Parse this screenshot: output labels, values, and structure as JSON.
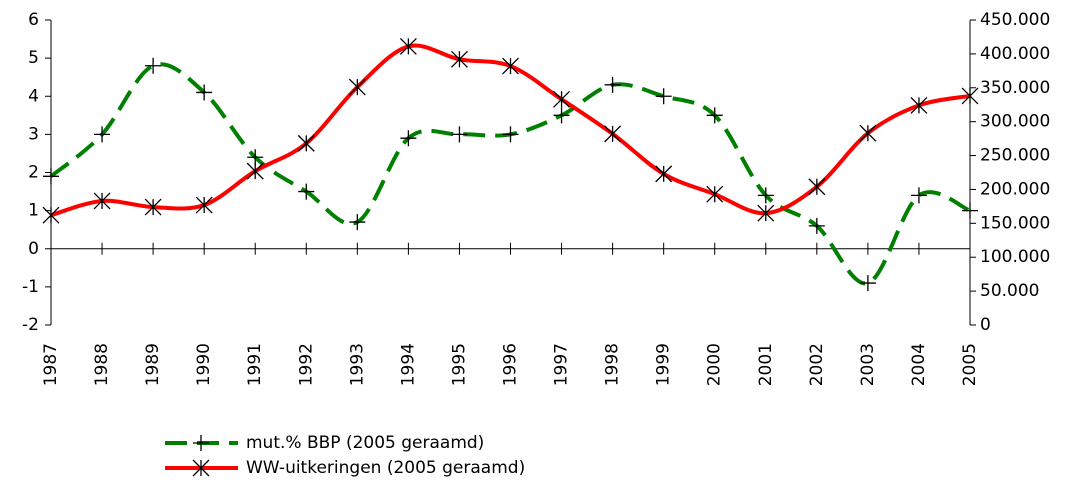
{
  "chart_data": {
    "type": "line",
    "categories": [
      "1987",
      "1988",
      "1989",
      "1990",
      "1991",
      "1992",
      "1993",
      "1994",
      "1995",
      "1996",
      "1997",
      "1998",
      "1999",
      "2000",
      "2001",
      "2002",
      "2003",
      "2004",
      "2005"
    ],
    "series": [
      {
        "name": "mut.% BBP (2005 geraamd)",
        "color": "#008000",
        "marker": "plus",
        "dashed": true,
        "values": [
          1.9,
          3.0,
          4.8,
          4.1,
          2.4,
          1.5,
          0.7,
          2.9,
          3.0,
          3.0,
          3.5,
          4.3,
          4.0,
          3.5,
          1.4,
          0.6,
          -0.9,
          1.4,
          1.0
        ]
      },
      {
        "name": "WW-uitkeringen (2005 geraamd)",
        "color": "#ff0000",
        "marker": "star",
        "axis": "y2",
        "dashed": false,
        "values": [
          162000,
          183000,
          174000,
          177000,
          227000,
          268000,
          351000,
          411000,
          392000,
          382000,
          333000,
          282000,
          223000,
          193000,
          165000,
          204000,
          283000,
          324000,
          338000
        ]
      }
    ],
    "ylim": [
      -2,
      6
    ],
    "yticks": [
      -2,
      -1,
      0,
      1,
      2,
      3,
      4,
      5,
      6
    ],
    "y2lim": [
      0,
      450000
    ],
    "y2ticks": [
      0,
      {
        "value": 50000,
        "label": "50.000"
      },
      {
        "value": 100000,
        "label": "100.000"
      },
      {
        "value": 150000,
        "label": "150.000"
      },
      {
        "value": 200000,
        "label": "200.000"
      },
      {
        "value": 250000,
        "label": "250.000"
      },
      {
        "value": 300000,
        "label": "300.000"
      },
      {
        "value": 350000,
        "label": "350.000"
      },
      {
        "value": 400000,
        "label": "400.000"
      },
      {
        "value": 450000,
        "label": "450.000"
      }
    ],
    "grid": false,
    "legend": "bottom"
  }
}
